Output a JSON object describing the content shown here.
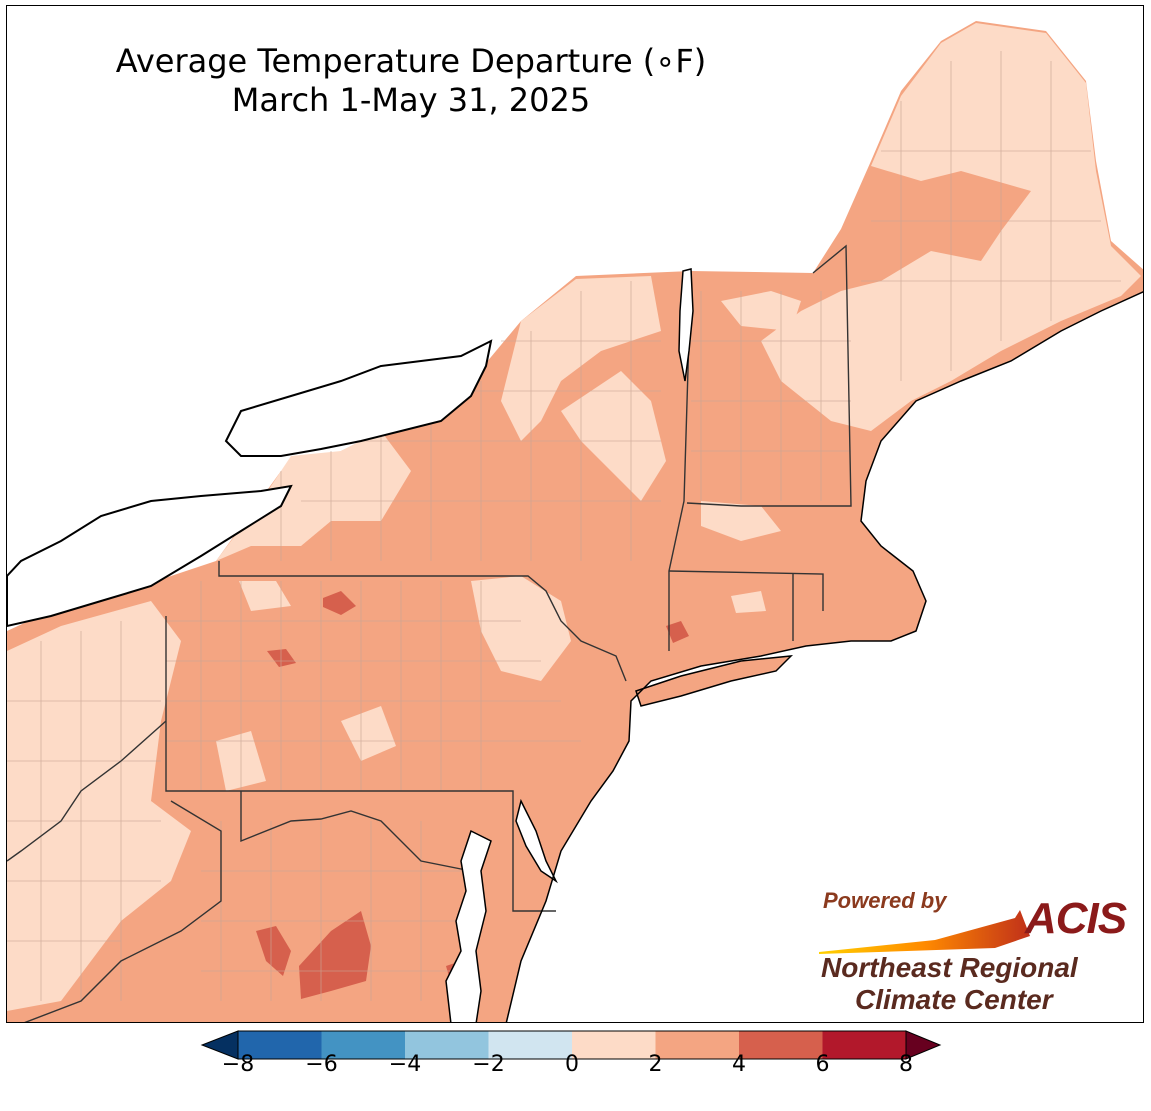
{
  "title": {
    "line1": "Average Temperature Departure ($^\\circ$F)",
    "line1_display": "Average Temperature Departure (∘F)",
    "line2": "March 1-May 31, 2025"
  },
  "legend": {
    "levels": [
      -8,
      -6,
      -4,
      -2,
      0,
      2,
      4,
      6,
      8
    ],
    "labels": [
      "−8",
      "−6",
      "−4",
      "−2",
      "0",
      "2",
      "4",
      "6",
      "8"
    ],
    "colors": [
      "#2166ac",
      "#4393c3",
      "#92c5de",
      "#d1e5f0",
      "#fddbc7",
      "#f4a582",
      "#d6604d",
      "#b2182b"
    ],
    "under_color": "#053061",
    "over_color": "#67001f"
  },
  "logo": {
    "powered_by": "Powered by",
    "acis": "ACIS",
    "org_line1": "Northeast Regional",
    "org_line2": "Climate Center"
  },
  "map_colors": {
    "band_0_2": "#fddbc7",
    "band_2_4": "#f4a582",
    "band_4_6": "#d6604d",
    "water": "#ffffff",
    "state_border": "#333333",
    "county_border": "#c9a595",
    "coast": "#000000"
  }
}
